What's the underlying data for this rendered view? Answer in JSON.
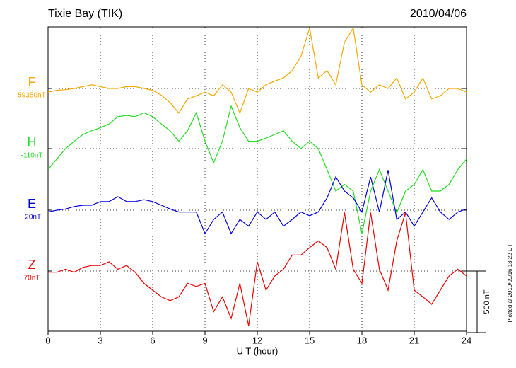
{
  "chart_data": {
    "type": "line",
    "title": "Tixie Bay (TIK)",
    "date": "2010/04/06",
    "x_label": "U T (hour)",
    "xlim": [
      0,
      24
    ],
    "xticks": [
      0,
      3,
      6,
      9,
      12,
      15,
      18,
      21,
      24
    ],
    "grid": true,
    "scale_bar": {
      "value": 500,
      "label": "500 nT"
    },
    "note": "Plotted at 2010/09/16 13:22 UT",
    "x": [
      0,
      0.5,
      1,
      1.5,
      2,
      2.5,
      3,
      3.5,
      4,
      4.5,
      5,
      5.5,
      6,
      6.5,
      7,
      7.5,
      8,
      8.5,
      9,
      9.5,
      10,
      10.5,
      11,
      11.5,
      12,
      12.5,
      13,
      13.5,
      14,
      14.5,
      15,
      15.5,
      16,
      16.5,
      17,
      17.5,
      18,
      18.5,
      19,
      19.5,
      20,
      20.5,
      21,
      21.5,
      22,
      22.5,
      23,
      23.5,
      24
    ],
    "series": [
      {
        "name": "F",
        "baseline": "59350nT",
        "color": "#f5a800",
        "values": [
          -30,
          -15,
          -10,
          0,
          15,
          30,
          15,
          0,
          0,
          15,
          15,
          0,
          -15,
          -55,
          -115,
          -200,
          -85,
          -60,
          -30,
          -60,
          30,
          -30,
          -200,
          0,
          -30,
          30,
          60,
          85,
          145,
          260,
          490,
          85,
          145,
          30,
          375,
          490,
          30,
          -30,
          30,
          0,
          85,
          -85,
          -30,
          85,
          -85,
          -60,
          0,
          0,
          -30
        ]
      },
      {
        "name": "H",
        "baseline": "-110nT",
        "color": "#22dd22",
        "values": [
          -170,
          -85,
          0,
          60,
          115,
          145,
          170,
          200,
          260,
          270,
          260,
          290,
          260,
          200,
          145,
          60,
          145,
          290,
          60,
          -115,
          60,
          345,
          170,
          60,
          60,
          85,
          115,
          145,
          60,
          0,
          60,
          0,
          -170,
          -345,
          -290,
          -345,
          -690,
          -345,
          -170,
          -345,
          -520,
          -345,
          -290,
          -170,
          -345,
          -345,
          -290,
          -170,
          -85
        ]
      },
      {
        "name": "E",
        "baseline": "-20nT",
        "color": "#0000dd",
        "values": [
          -15,
          0,
          10,
          30,
          40,
          40,
          70,
          70,
          110,
          70,
          70,
          85,
          70,
          40,
          10,
          -15,
          -15,
          -15,
          -190,
          -75,
          -15,
          -190,
          -75,
          -130,
          -15,
          -75,
          -15,
          -130,
          -75,
          -15,
          -45,
          -15,
          100,
          270,
          155,
          100,
          -15,
          270,
          -15,
          325,
          -75,
          -15,
          -130,
          -15,
          100,
          -15,
          -75,
          -15,
          10
        ]
      },
      {
        "name": "Z",
        "baseline": "70nT",
        "color": "#ee0000",
        "values": [
          -10,
          -10,
          15,
          -10,
          30,
          45,
          45,
          75,
          15,
          45,
          -10,
          -100,
          -155,
          -210,
          -240,
          -210,
          -100,
          -125,
          -100,
          -330,
          -210,
          -385,
          -100,
          -445,
          75,
          -155,
          -40,
          15,
          130,
          130,
          190,
          245,
          190,
          15,
          475,
          15,
          -100,
          475,
          15,
          -155,
          245,
          475,
          -155,
          -210,
          -270,
          -155,
          -40,
          15,
          -40
        ]
      }
    ]
  }
}
